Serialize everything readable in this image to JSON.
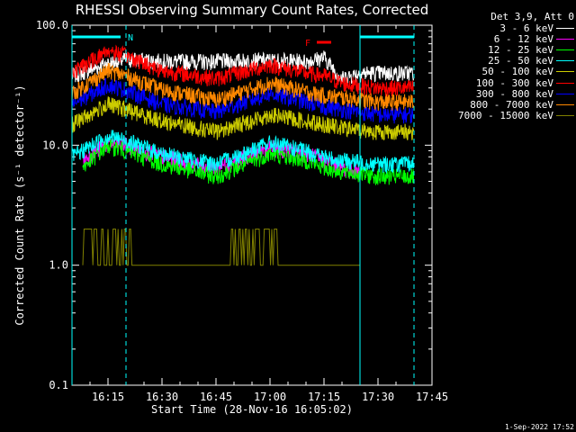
{
  "chart_data": {
    "type": "line",
    "title": "RHESSI Observing Summary Count Rates, Corrected",
    "ylabel": "Corrected Count Rate (s⁻¹ detector⁻¹)",
    "xlabel": "Start Time (28-Nov-16 16:05:02)",
    "y_scale": "log",
    "ylim": [
      0.1,
      100
    ],
    "xlim": [
      "16:05",
      "17:45"
    ],
    "y_ticks": [
      "100.0",
      "10.0",
      "1.0",
      "0.1"
    ],
    "x_ticks": [
      "16:15",
      "16:30",
      "16:45",
      "17:00",
      "17:15",
      "17:30",
      "17:45"
    ],
    "legend_title": "Det 3,9, Att 0",
    "legend_position": "top-right, outside plot",
    "series": [
      {
        "name": "3 - 6 keV",
        "color": "#ffffff",
        "x": [
          "16:05",
          "16:15",
          "16:20",
          "16:30",
          "16:45",
          "17:00",
          "17:10",
          "17:15",
          "17:20",
          "17:25",
          "17:40"
        ],
        "y": [
          38,
          48,
          52,
          50,
          50,
          51,
          50,
          54,
          36,
          40,
          40
        ]
      },
      {
        "name": "6 - 12 keV",
        "color": "#ff00ff",
        "x": [
          "16:08",
          "16:15",
          "16:20",
          "16:30",
          "16:45",
          "17:00",
          "17:10",
          "17:15",
          "17:20",
          "17:25"
        ],
        "y": [
          7.5,
          10.5,
          10,
          8,
          6.5,
          9.5,
          8.5,
          7.5,
          6.5,
          6
        ]
      },
      {
        "name": "12 - 25 keV",
        "color": "#00ff00",
        "x": [
          "16:08",
          "16:15",
          "16:20",
          "16:30",
          "16:45",
          "17:00",
          "17:10",
          "17:15",
          "17:20",
          "17:30",
          "17:40"
        ],
        "y": [
          6.5,
          10,
          9,
          7,
          5.5,
          8.5,
          7.5,
          6.5,
          6,
          5.5,
          5.5
        ]
      },
      {
        "name": "25 - 50 keV",
        "color": "#00ffff",
        "x": [
          "16:05",
          "16:15",
          "16:20",
          "16:30",
          "16:45",
          "17:00",
          "17:10",
          "17:15",
          "17:20",
          "17:30",
          "17:40"
        ],
        "y": [
          8,
          12,
          11,
          8.5,
          7,
          10.5,
          9,
          8,
          7.5,
          7,
          7
        ]
      },
      {
        "name": "50 - 100 keV",
        "color": "#cccc00",
        "x": [
          "16:05",
          "16:15",
          "16:20",
          "16:30",
          "16:45",
          "17:00",
          "17:10",
          "17:15",
          "17:20",
          "17:30",
          "17:40"
        ],
        "y": [
          15,
          22,
          20,
          16,
          13,
          18,
          16,
          15,
          14,
          13,
          13
        ]
      },
      {
        "name": "100 - 300 keV",
        "color": "#ff0000",
        "x": [
          "16:05",
          "16:15",
          "16:20",
          "16:30",
          "16:45",
          "17:00",
          "17:10",
          "17:15",
          "17:20",
          "17:30",
          "17:40"
        ],
        "y": [
          40,
          62,
          56,
          42,
          36,
          47,
          40,
          38,
          33,
          30,
          30
        ]
      },
      {
        "name": "300 - 800 keV",
        "color": "#0000ff",
        "x": [
          "16:05",
          "16:15",
          "16:20",
          "16:30",
          "16:45",
          "17:00",
          "17:10",
          "17:15",
          "17:20",
          "17:30",
          "17:40"
        ],
        "y": [
          22,
          32,
          29,
          22,
          19,
          27,
          23,
          21,
          20,
          18,
          18
        ]
      },
      {
        "name": "800 - 7000 keV",
        "color": "#ff8800",
        "x": [
          "16:05",
          "16:15",
          "16:20",
          "16:30",
          "16:45",
          "17:00",
          "17:10",
          "17:15",
          "17:20",
          "17:30",
          "17:40"
        ],
        "y": [
          27,
          42,
          38,
          29,
          24,
          33,
          28,
          26,
          25,
          23,
          23
        ]
      },
      {
        "name": "7000 - 15000 keV",
        "color": "#808000",
        "x": [
          "16:08",
          "16:20",
          "16:24",
          "16:45",
          "16:52",
          "17:00",
          "17:05",
          "17:25"
        ],
        "y": [
          2.0,
          2.0,
          1.0,
          1.0,
          2.0,
          2.0,
          1.0,
          1.0
        ]
      }
    ],
    "annotations": [
      {
        "text": "N",
        "color": "#00ffff",
        "x_range": [
          "16:05",
          "16:20"
        ],
        "type": "night"
      },
      {
        "text": "F",
        "color": "#ff0000",
        "x_range": [
          "17:13",
          "17:17"
        ],
        "type": "flare"
      }
    ],
    "vertical_lines": [
      {
        "x": "16:05",
        "style": "solid",
        "color": "#00ffff"
      },
      {
        "x": "16:20",
        "style": "dashed",
        "color": "#00ffff"
      },
      {
        "x": "17:25",
        "style": "solid",
        "color": "#00ffff"
      },
      {
        "x": "17:40",
        "style": "dashed",
        "color": "#00ffff"
      }
    ]
  },
  "footer_stamp": "1-Sep-2022 17:52"
}
